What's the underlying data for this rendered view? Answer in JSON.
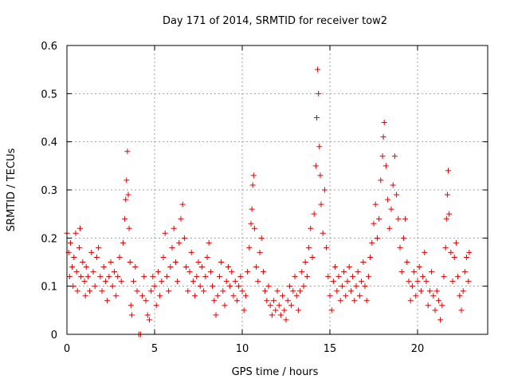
{
  "chart_data": {
    "type": "scatter",
    "title": "Day 171 of 2014, SRMTID for receiver tow2",
    "xlabel": "GPS time / hours",
    "ylabel": "SRMTID / TECUs",
    "xlim": [
      0,
      24
    ],
    "ylim": [
      0,
      0.6
    ],
    "xticks": [
      "0",
      "5",
      "10",
      "15",
      "20"
    ],
    "yticks": [
      "0",
      "0.1",
      "0.2",
      "0.3",
      "0.4",
      "0.5",
      "0.6"
    ],
    "marker": "+",
    "grid": true,
    "series": [
      {
        "name": "SRMTID tow2",
        "color": "#e00000",
        "points": [
          [
            0.0,
            0.21
          ],
          [
            0.1,
            0.17
          ],
          [
            0.15,
            0.12
          ],
          [
            0.2,
            0.19
          ],
          [
            0.3,
            0.14
          ],
          [
            0.35,
            0.1
          ],
          [
            0.4,
            0.16
          ],
          [
            0.5,
            0.21
          ],
          [
            0.55,
            0.13
          ],
          [
            0.6,
            0.09
          ],
          [
            0.7,
            0.18
          ],
          [
            0.75,
            0.22
          ],
          [
            0.8,
            0.12
          ],
          [
            0.9,
            0.15
          ],
          [
            1.0,
            0.11
          ],
          [
            1.05,
            0.08
          ],
          [
            1.1,
            0.14
          ],
          [
            1.2,
            0.12
          ],
          [
            1.3,
            0.09
          ],
          [
            1.4,
            0.17
          ],
          [
            1.5,
            0.13
          ],
          [
            1.6,
            0.1
          ],
          [
            1.7,
            0.16
          ],
          [
            1.8,
            0.18
          ],
          [
            1.9,
            0.12
          ],
          [
            2.0,
            0.09
          ],
          [
            2.1,
            0.14
          ],
          [
            2.2,
            0.11
          ],
          [
            2.3,
            0.07
          ],
          [
            2.4,
            0.12
          ],
          [
            2.5,
            0.15
          ],
          [
            2.6,
            0.1
          ],
          [
            2.7,
            0.13
          ],
          [
            2.8,
            0.08
          ],
          [
            2.9,
            0.12
          ],
          [
            3.0,
            0.16
          ],
          [
            3.1,
            0.11
          ],
          [
            3.2,
            0.19
          ],
          [
            3.3,
            0.24
          ],
          [
            3.35,
            0.28
          ],
          [
            3.4,
            0.32
          ],
          [
            3.45,
            0.38
          ],
          [
            3.5,
            0.29
          ],
          [
            3.55,
            0.22
          ],
          [
            3.6,
            0.15
          ],
          [
            3.65,
            0.06
          ],
          [
            3.7,
            0.04
          ],
          [
            3.8,
            0.11
          ],
          [
            3.9,
            0.14
          ],
          [
            4.0,
            0.09
          ],
          [
            4.1,
            0.0
          ],
          [
            4.2,
            0.0
          ],
          [
            4.3,
            0.08
          ],
          [
            4.4,
            0.12
          ],
          [
            4.5,
            0.07
          ],
          [
            4.6,
            0.04
          ],
          [
            4.7,
            0.03
          ],
          [
            4.8,
            0.09
          ],
          [
            4.9,
            0.12
          ],
          [
            5.0,
            0.1
          ],
          [
            5.1,
            0.06
          ],
          [
            5.2,
            0.13
          ],
          [
            5.3,
            0.08
          ],
          [
            5.4,
            0.11
          ],
          [
            5.5,
            0.16
          ],
          [
            5.6,
            0.21
          ],
          [
            5.7,
            0.12
          ],
          [
            5.8,
            0.09
          ],
          [
            5.9,
            0.14
          ],
          [
            6.0,
            0.18
          ],
          [
            6.1,
            0.22
          ],
          [
            6.2,
            0.15
          ],
          [
            6.3,
            0.11
          ],
          [
            6.4,
            0.19
          ],
          [
            6.5,
            0.24
          ],
          [
            6.6,
            0.27
          ],
          [
            6.7,
            0.2
          ],
          [
            6.8,
            0.14
          ],
          [
            6.9,
            0.09
          ],
          [
            7.0,
            0.13
          ],
          [
            7.1,
            0.17
          ],
          [
            7.2,
            0.11
          ],
          [
            7.3,
            0.08
          ],
          [
            7.4,
            0.12
          ],
          [
            7.5,
            0.15
          ],
          [
            7.6,
            0.1
          ],
          [
            7.7,
            0.14
          ],
          [
            7.8,
            0.09
          ],
          [
            7.9,
            0.12
          ],
          [
            8.0,
            0.16
          ],
          [
            8.1,
            0.19
          ],
          [
            8.2,
            0.13
          ],
          [
            8.3,
            0.1
          ],
          [
            8.4,
            0.07
          ],
          [
            8.5,
            0.04
          ],
          [
            8.6,
            0.08
          ],
          [
            8.7,
            0.12
          ],
          [
            8.8,
            0.15
          ],
          [
            8.9,
            0.09
          ],
          [
            9.0,
            0.06
          ],
          [
            9.1,
            0.11
          ],
          [
            9.2,
            0.14
          ],
          [
            9.3,
            0.1
          ],
          [
            9.4,
            0.13
          ],
          [
            9.5,
            0.08
          ],
          [
            9.6,
            0.11
          ],
          [
            9.7,
            0.07
          ],
          [
            9.8,
            0.1
          ],
          [
            9.9,
            0.12
          ],
          [
            10.0,
            0.09
          ],
          [
            10.1,
            0.05
          ],
          [
            10.2,
            0.08
          ],
          [
            10.3,
            0.13
          ],
          [
            10.4,
            0.18
          ],
          [
            10.5,
            0.23
          ],
          [
            10.55,
            0.26
          ],
          [
            10.6,
            0.31
          ],
          [
            10.65,
            0.33
          ],
          [
            10.7,
            0.22
          ],
          [
            10.8,
            0.14
          ],
          [
            10.9,
            0.11
          ],
          [
            11.0,
            0.17
          ],
          [
            11.1,
            0.2
          ],
          [
            11.2,
            0.13
          ],
          [
            11.3,
            0.09
          ],
          [
            11.4,
            0.07
          ],
          [
            11.5,
            0.1
          ],
          [
            11.6,
            0.06
          ],
          [
            11.7,
            0.04
          ],
          [
            11.8,
            0.07
          ],
          [
            11.9,
            0.05
          ],
          [
            12.0,
            0.09
          ],
          [
            12.1,
            0.06
          ],
          [
            12.2,
            0.04
          ],
          [
            12.3,
            0.08
          ],
          [
            12.4,
            0.05
          ],
          [
            12.5,
            0.03
          ],
          [
            12.6,
            0.07
          ],
          [
            12.7,
            0.1
          ],
          [
            12.8,
            0.06
          ],
          [
            12.9,
            0.09
          ],
          [
            13.0,
            0.12
          ],
          [
            13.1,
            0.08
          ],
          [
            13.2,
            0.05
          ],
          [
            13.3,
            0.09
          ],
          [
            13.4,
            0.13
          ],
          [
            13.5,
            0.1
          ],
          [
            13.6,
            0.15
          ],
          [
            13.7,
            0.12
          ],
          [
            13.8,
            0.18
          ],
          [
            13.9,
            0.22
          ],
          [
            14.0,
            0.16
          ],
          [
            14.1,
            0.25
          ],
          [
            14.2,
            0.35
          ],
          [
            14.25,
            0.45
          ],
          [
            14.3,
            0.55
          ],
          [
            14.35,
            0.5
          ],
          [
            14.4,
            0.39
          ],
          [
            14.45,
            0.33
          ],
          [
            14.5,
            0.27
          ],
          [
            14.6,
            0.21
          ],
          [
            14.7,
            0.3
          ],
          [
            14.8,
            0.18
          ],
          [
            14.9,
            0.12
          ],
          [
            15.0,
            0.08
          ],
          [
            15.1,
            0.05
          ],
          [
            15.2,
            0.11
          ],
          [
            15.3,
            0.14
          ],
          [
            15.4,
            0.09
          ],
          [
            15.5,
            0.12
          ],
          [
            15.6,
            0.07
          ],
          [
            15.7,
            0.1
          ],
          [
            15.8,
            0.13
          ],
          [
            15.9,
            0.08
          ],
          [
            16.0,
            0.11
          ],
          [
            16.1,
            0.14
          ],
          [
            16.2,
            0.09
          ],
          [
            16.3,
            0.12
          ],
          [
            16.4,
            0.07
          ],
          [
            16.5,
            0.1
          ],
          [
            16.6,
            0.13
          ],
          [
            16.7,
            0.08
          ],
          [
            16.8,
            0.11
          ],
          [
            16.9,
            0.15
          ],
          [
            17.0,
            0.1
          ],
          [
            17.1,
            0.07
          ],
          [
            17.2,
            0.12
          ],
          [
            17.3,
            0.16
          ],
          [
            17.4,
            0.19
          ],
          [
            17.5,
            0.23
          ],
          [
            17.6,
            0.27
          ],
          [
            17.7,
            0.2
          ],
          [
            17.8,
            0.24
          ],
          [
            17.9,
            0.32
          ],
          [
            18.0,
            0.37
          ],
          [
            18.05,
            0.41
          ],
          [
            18.1,
            0.44
          ],
          [
            18.2,
            0.35
          ],
          [
            18.3,
            0.28
          ],
          [
            18.4,
            0.22
          ],
          [
            18.5,
            0.26
          ],
          [
            18.6,
            0.31
          ],
          [
            18.7,
            0.37
          ],
          [
            18.8,
            0.29
          ],
          [
            18.9,
            0.24
          ],
          [
            19.0,
            0.18
          ],
          [
            19.1,
            0.13
          ],
          [
            19.2,
            0.2
          ],
          [
            19.3,
            0.24
          ],
          [
            19.4,
            0.15
          ],
          [
            19.5,
            0.11
          ],
          [
            19.6,
            0.07
          ],
          [
            19.7,
            0.1
          ],
          [
            19.8,
            0.13
          ],
          [
            19.9,
            0.08
          ],
          [
            20.0,
            0.11
          ],
          [
            20.1,
            0.14
          ],
          [
            20.2,
            0.09
          ],
          [
            20.3,
            0.12
          ],
          [
            20.4,
            0.17
          ],
          [
            20.5,
            0.11
          ],
          [
            20.6,
            0.06
          ],
          [
            20.7,
            0.09
          ],
          [
            20.8,
            0.13
          ],
          [
            20.9,
            0.08
          ],
          [
            21.0,
            0.05
          ],
          [
            21.1,
            0.09
          ],
          [
            21.2,
            0.07
          ],
          [
            21.3,
            0.03
          ],
          [
            21.4,
            0.06
          ],
          [
            21.5,
            0.12
          ],
          [
            21.6,
            0.18
          ],
          [
            21.65,
            0.24
          ],
          [
            21.7,
            0.29
          ],
          [
            21.75,
            0.34
          ],
          [
            21.8,
            0.25
          ],
          [
            21.9,
            0.17
          ],
          [
            22.0,
            0.11
          ],
          [
            22.1,
            0.16
          ],
          [
            22.2,
            0.19
          ],
          [
            22.3,
            0.12
          ],
          [
            22.4,
            0.08
          ],
          [
            22.5,
            0.05
          ],
          [
            22.6,
            0.09
          ],
          [
            22.7,
            0.13
          ],
          [
            22.8,
            0.16
          ],
          [
            22.9,
            0.11
          ],
          [
            22.95,
            0.17
          ]
        ]
      }
    ]
  }
}
